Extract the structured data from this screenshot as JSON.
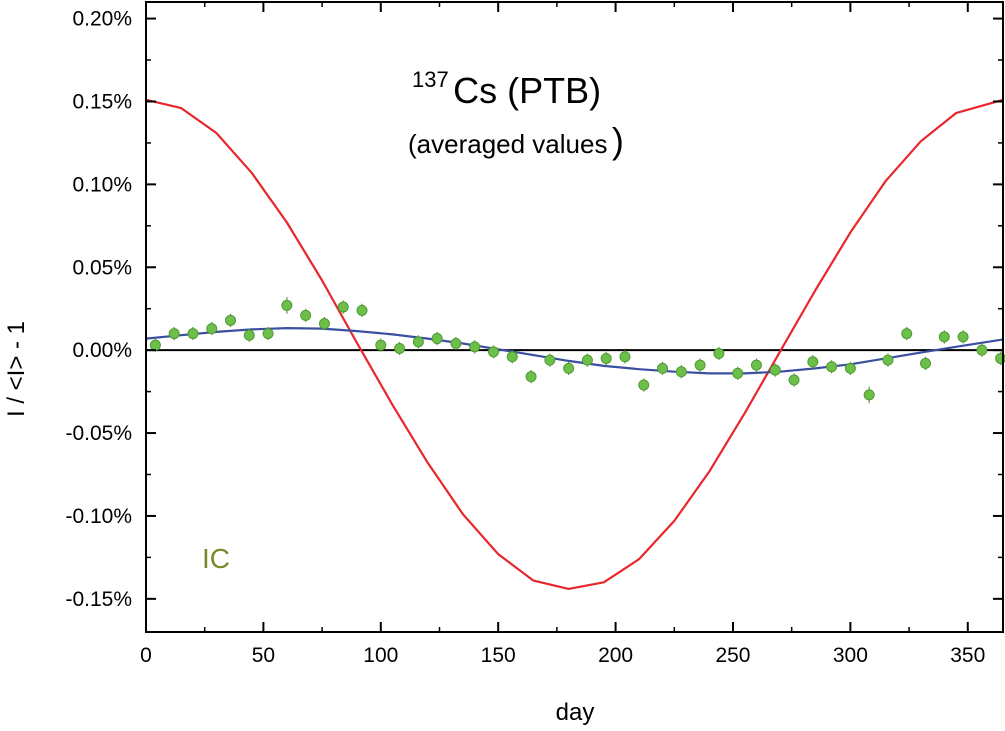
{
  "chart_data": {
    "type": "scatter",
    "title": {
      "superscript": "137",
      "main": "Cs (PTB)",
      "subtitle": "(averaged values",
      "subtitle_close": ")"
    },
    "xlabel": "day",
    "ylabel": "I / <I> - 1",
    "xlim": [
      0,
      365
    ],
    "ylim": [
      -0.17,
      0.21
    ],
    "x_ticks": [
      0,
      50,
      100,
      150,
      200,
      250,
      300,
      350
    ],
    "x_tick_labels": [
      "0",
      "50",
      "100",
      "150",
      "200",
      "250",
      "300",
      "350"
    ],
    "x_minor_step": 25,
    "y_ticks": [
      -0.15,
      -0.1,
      -0.05,
      0.0,
      0.05,
      0.1,
      0.15,
      0.2
    ],
    "y_tick_labels": [
      "-0.15%",
      "-0.10%",
      "-0.05%",
      "0.00%",
      "0.05%",
      "0.10%",
      "0.15%",
      "0.20%"
    ],
    "y_minor_step": 0.025,
    "zero_line": 0,
    "annotation": {
      "text": "IC",
      "color": "#7a8a2a"
    },
    "colors": {
      "points": "#6cc04a",
      "point_edge": "#4f9a34",
      "error_bar": "#5a9a3c",
      "sine": "#e8262b",
      "fit": "#3a4fa0",
      "axis": "#000000"
    },
    "series": [
      {
        "type": "scatter",
        "x": [
          4,
          12,
          20,
          28,
          36,
          44,
          52,
          60,
          68,
          76,
          84,
          92,
          100,
          108,
          116,
          124,
          132,
          140,
          148,
          156,
          164,
          172,
          180,
          188,
          196,
          204,
          212,
          220,
          228,
          236,
          244,
          252,
          260,
          268,
          276,
          284,
          292,
          300,
          308,
          316,
          324,
          332,
          340,
          348,
          356,
          364
        ],
        "y": [
          0.003,
          0.01,
          0.01,
          0.013,
          0.018,
          0.009,
          0.01,
          0.027,
          0.021,
          0.016,
          0.026,
          0.024,
          0.003,
          0.001,
          0.005,
          0.007,
          0.004,
          0.002,
          -0.001,
          -0.004,
          -0.016,
          -0.006,
          -0.011,
          -0.006,
          -0.005,
          -0.004,
          -0.021,
          -0.011,
          -0.013,
          -0.009,
          -0.002,
          -0.014,
          -0.009,
          -0.012,
          -0.018,
          -0.007,
          -0.01,
          -0.011,
          -0.027,
          -0.006,
          0.01,
          -0.008,
          0.008,
          0.008,
          0.0,
          -0.005
        ],
        "err": [
          0.004,
          0.004,
          0.004,
          0.004,
          0.004,
          0.004,
          0.004,
          0.005,
          0.004,
          0.004,
          0.004,
          0.004,
          0.004,
          0.004,
          0.004,
          0.004,
          0.004,
          0.004,
          0.004,
          0.004,
          0.004,
          0.004,
          0.004,
          0.004,
          0.004,
          0.004,
          0.004,
          0.004,
          0.004,
          0.004,
          0.004,
          0.004,
          0.004,
          0.004,
          0.004,
          0.004,
          0.004,
          0.004,
          0.005,
          0.004,
          0.004,
          0.004,
          0.004,
          0.004,
          0.004,
          0.004
        ]
      },
      {
        "type": "line",
        "x": [
          0,
          15,
          30,
          45,
          60,
          75,
          90,
          105,
          120,
          135,
          150,
          165,
          180,
          195,
          210,
          225,
          240,
          255,
          270,
          285,
          300,
          315,
          330,
          345,
          365
        ],
        "y": [
          0.151,
          0.146,
          0.131,
          0.107,
          0.077,
          0.042,
          0.004,
          -0.033,
          -0.068,
          -0.099,
          -0.123,
          -0.139,
          -0.144,
          -0.14,
          -0.126,
          -0.103,
          -0.073,
          -0.038,
          -0.001,
          0.036,
          0.071,
          0.102,
          0.126,
          0.143,
          0.151
        ]
      },
      {
        "type": "line",
        "x": [
          0,
          15,
          30,
          45,
          60,
          75,
          90,
          105,
          120,
          135,
          150,
          165,
          180,
          195,
          210,
          225,
          240,
          255,
          270,
          285,
          300,
          315,
          330,
          345,
          365
        ],
        "y": [
          0.007,
          0.009,
          0.011,
          0.0125,
          0.0133,
          0.013,
          0.0115,
          0.0095,
          0.007,
          0.004,
          0.0005,
          -0.003,
          -0.0065,
          -0.0095,
          -0.0115,
          -0.013,
          -0.014,
          -0.014,
          -0.013,
          -0.011,
          -0.0085,
          -0.005,
          -0.0015,
          0.002,
          0.0065
        ]
      }
    ]
  }
}
